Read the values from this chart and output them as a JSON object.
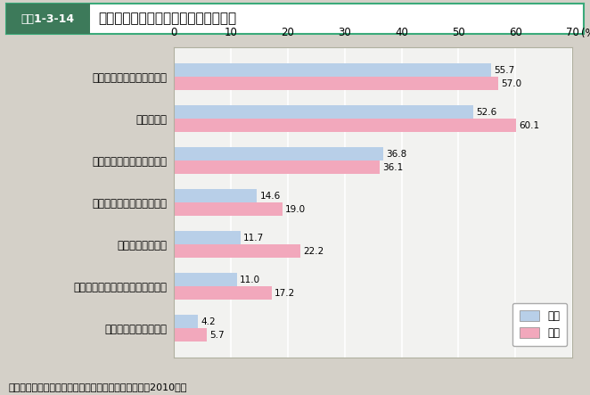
{
  "title": "「恋人が欲しい」と思わない人の理由",
  "title_label": "図表1-3-14",
  "categories": [
    "自分の趣味に力を入れたい",
    "恋愛が面倒",
    "仕事や勉強に力を入れたい",
    "異性と交際するのがこわい",
    "異性に興味がない",
    "友人と過ごす時間を大切にしたい",
    "過去に恋愛で失敗した"
  ],
  "male_values": [
    55.7,
    52.6,
    36.8,
    14.6,
    11.7,
    11.0,
    4.2
  ],
  "female_values": [
    57.0,
    60.1,
    36.1,
    19.0,
    22.2,
    17.2,
    5.7
  ],
  "male_color": "#b8cfe8",
  "female_color": "#f2a8bc",
  "xlim": [
    0,
    70
  ],
  "xticks": [
    0,
    10,
    20,
    30,
    40,
    50,
    60,
    70
  ],
  "xlabel": "(%)",
  "legend_male": "男性",
  "legend_female": "女性",
  "source": "資料：内閣府「結婚・家族形成に関する意識調査」（2010年）",
  "background_color": "#d4d0c8",
  "plot_background": "#f2f2f0",
  "header_bg": "#d4d0c8",
  "header_box_color": "#3d7a5a",
  "header_box_text": "#ffffff",
  "bar_height": 0.32,
  "fontsize_title": 11,
  "fontsize_title_label": 9,
  "fontsize_labels": 8.5,
  "fontsize_ticks": 8.5,
  "fontsize_values": 7.5,
  "fontsize_source": 8,
  "border_color": "#b0b0a0"
}
